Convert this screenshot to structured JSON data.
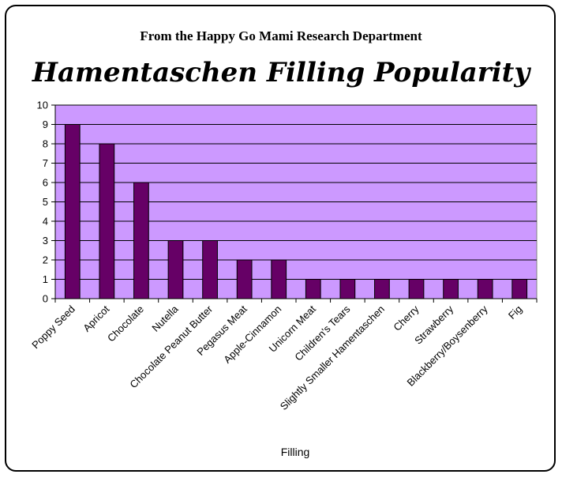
{
  "chart_data": {
    "type": "bar",
    "subtitle": "From the Happy Go Mami Research Department",
    "title": "Hamentaschen Filling Popularity",
    "xlabel": "Filling",
    "ylabel": "",
    "ylim": [
      0,
      10
    ],
    "yticks": [
      "0",
      "1",
      "2",
      "3",
      "4",
      "5",
      "6",
      "7",
      "8",
      "9",
      "10"
    ],
    "grid": true,
    "categories": [
      "Poppy Seed",
      "Apricot",
      "Chocolate",
      "Nutella",
      "Chocolate Peanut Butter",
      "Pegasus Meat",
      "Apple-Cinnamon",
      "Unicorn Meat",
      "Children's Tears",
      "Slightly Smaller Hamentaschen",
      "Cherry",
      "Strawberry",
      "Blackberry/Boysenberry",
      "Fig"
    ],
    "values": [
      9,
      8,
      6,
      3,
      3,
      2,
      2,
      1,
      1,
      1,
      1,
      1,
      1,
      1
    ],
    "colors": {
      "plot_bg": "#cc99ff",
      "bar": "#660066",
      "grid": "#000000"
    }
  }
}
